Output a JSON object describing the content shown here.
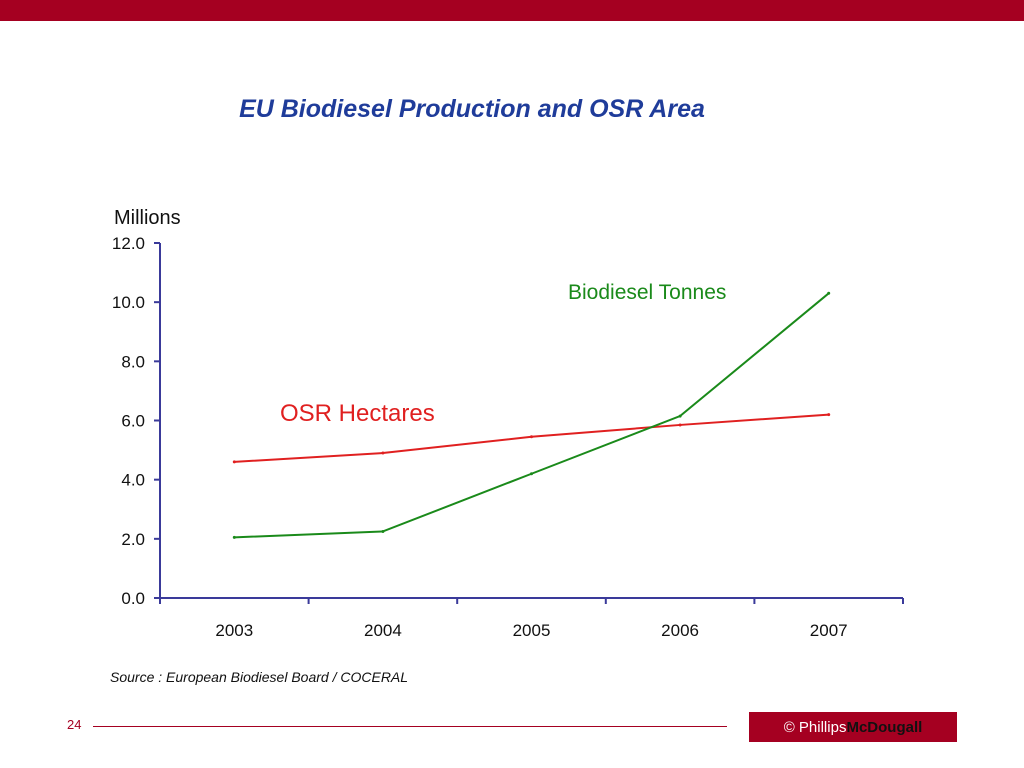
{
  "slide": {
    "title": "EU Biodiesel Production and OSR Area",
    "source": "Source : European Biodiesel Board / COCERAL",
    "page_number": "24",
    "logo": {
      "copyright": "© Phillips",
      "brand": "McDougall"
    }
  },
  "colors": {
    "brand": "#a50021",
    "title": "#1f3c9a",
    "axis": "#3a3a9a",
    "osr": "#e02020",
    "biodiesel": "#1a8a1a"
  },
  "chart_data": {
    "type": "line",
    "title": "EU Biodiesel Production and OSR Area",
    "ylabel": "Millions",
    "xlabel": "",
    "ylim": [
      0,
      12
    ],
    "yticks": [
      "0.0",
      "2.0",
      "4.0",
      "6.0",
      "8.0",
      "10.0",
      "12.0"
    ],
    "categories": [
      "2003",
      "2004",
      "2005",
      "2006",
      "2007"
    ],
    "grid": false,
    "legend": "inline labels",
    "series": [
      {
        "name": "OSR Hectares",
        "color": "#e02020",
        "values": [
          4.6,
          4.9,
          5.45,
          5.85,
          6.2
        ]
      },
      {
        "name": "Biodiesel Tonnes",
        "color": "#1a8a1a",
        "values": [
          2.05,
          2.25,
          4.2,
          6.15,
          10.3
        ]
      }
    ]
  }
}
